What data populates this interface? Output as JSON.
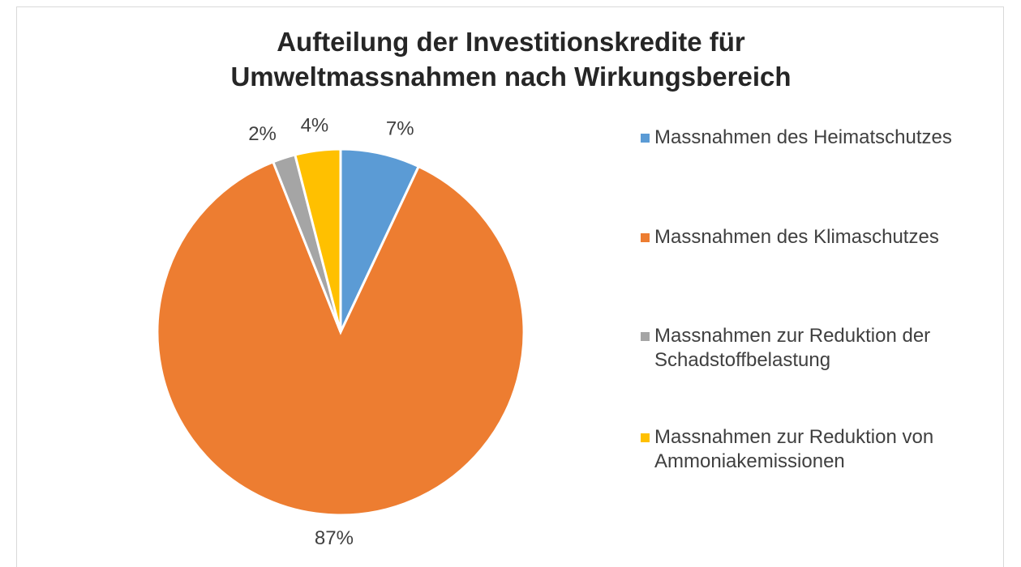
{
  "chart_data": {
    "type": "pie",
    "title": "Aufteilung der Investitionskredite für Umweltmassnahmen nach Wirkungsbereich",
    "categories": [
      "Massnahmen des Heimatschutzes",
      "Massnahmen des Klimaschutzes",
      "Massnahmen zur Reduktion der Schadstoffbelastung",
      "Massnahmen zur Reduktion von Ammoniakemissionen"
    ],
    "values": [
      7,
      87,
      2,
      4
    ],
    "value_labels": [
      "7%",
      "87%",
      "2%",
      "4%"
    ],
    "colors": [
      "#5b9bd5",
      "#ed7d31",
      "#a5a5a5",
      "#ffc000"
    ],
    "legend": "right"
  }
}
